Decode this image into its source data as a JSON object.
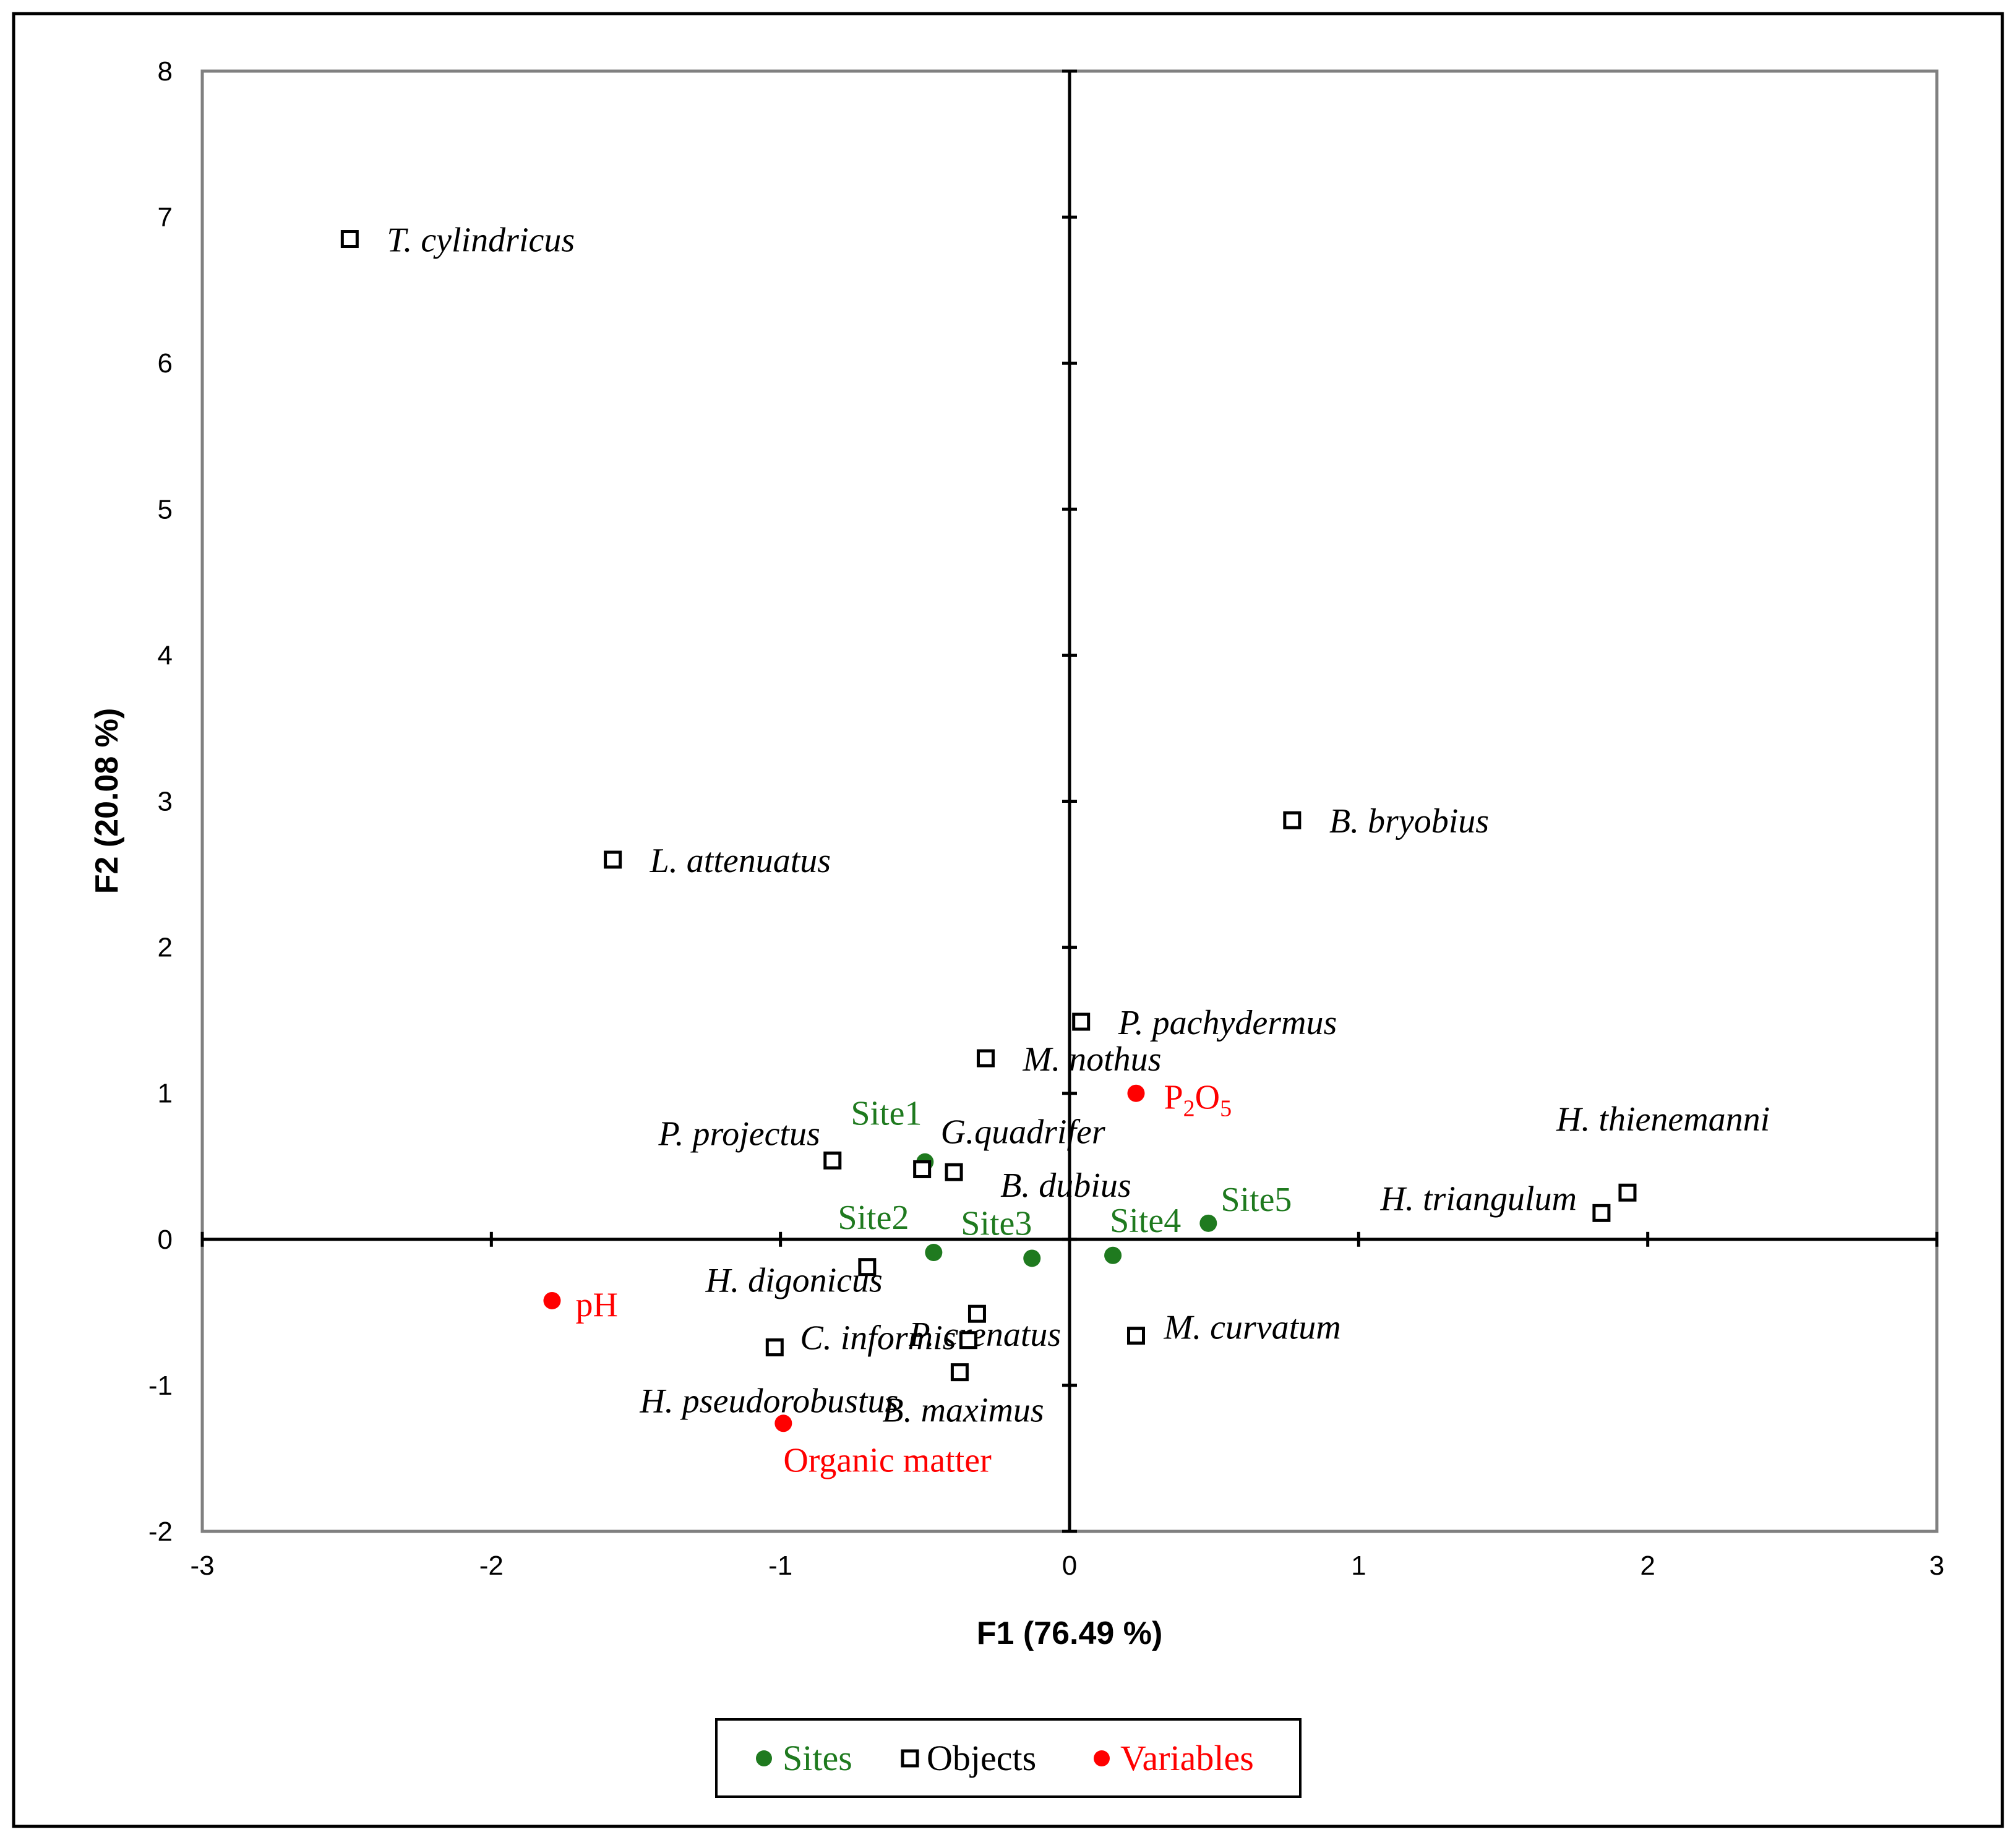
{
  "chart_data": {
    "type": "scatter",
    "xlabel": "F1 (76.49 %)",
    "ylabel": "F2 (20.08 %)",
    "xlim": [
      -3,
      3
    ],
    "ylim": [
      -2,
      8
    ],
    "xticks": [
      "-3",
      "-2",
      "-1",
      "0",
      "1",
      "2",
      "3"
    ],
    "yticks": [
      "-2",
      "-1",
      "0",
      "1",
      "2",
      "3",
      "4",
      "5",
      "6",
      "7",
      "8"
    ],
    "grid": false,
    "legend_position": "bottom-center",
    "colors": {
      "sites": "#1f7a1f",
      "objects": "#000000",
      "variables": "#ff0000"
    },
    "series": [
      {
        "name": "Sites",
        "marker": "filled-circle",
        "points": [
          {
            "label": "Site1",
            "x": -0.5,
            "y": 0.53
          },
          {
            "label": "Site2",
            "x": -0.47,
            "y": -0.09
          },
          {
            "label": "Site3",
            "x": -0.13,
            "y": -0.13
          },
          {
            "label": "Site4",
            "x": 0.15,
            "y": -0.11
          },
          {
            "label": "Site5",
            "x": 0.48,
            "y": 0.11
          }
        ]
      },
      {
        "name": "Objects",
        "marker": "open-square",
        "points": [
          {
            "label": "T. cylindricus",
            "x": -2.49,
            "y": 6.85
          },
          {
            "label": "L. attenuatus",
            "x": -1.58,
            "y": 2.6
          },
          {
            "label": "B. bryobius",
            "x": 0.77,
            "y": 2.87
          },
          {
            "label": "P. pachydermus",
            "x": 0.04,
            "y": 1.49
          },
          {
            "label": "M. nothus",
            "x": -0.29,
            "y": 1.24
          },
          {
            "label": "P. projectus",
            "x": -0.82,
            "y": 0.54
          },
          {
            "label": "G.quadrifer",
            "x": -0.51,
            "y": 0.48
          },
          {
            "label": "B. dubius",
            "x": -0.4,
            "y": 0.46
          },
          {
            "label": "H. thienemanni",
            "x": 1.93,
            "y": 0.32
          },
          {
            "label": "H. triangulum",
            "x": 1.84,
            "y": 0.18
          },
          {
            "label": "H. digonicus",
            "x": -0.7,
            "y": -0.19
          },
          {
            "label": "P. crenatus",
            "x": -0.32,
            "y": -0.51
          },
          {
            "label": "C. informis",
            "x": -0.35,
            "y": -0.69
          },
          {
            "label": "H. pseudorobustus",
            "x": -1.02,
            "y": -0.74
          },
          {
            "label": "B. maximus",
            "x": -0.38,
            "y": -0.91
          },
          {
            "label": "M. curvatum",
            "x": 0.23,
            "y": -0.66
          }
        ]
      },
      {
        "name": "Variables",
        "marker": "filled-circle",
        "points": [
          {
            "label": "P2O5",
            "x": 0.23,
            "y": 1.0
          },
          {
            "label": "pH",
            "x": -1.79,
            "y": -0.42
          },
          {
            "label": "Organic matter",
            "x": -0.99,
            "y": -1.26
          }
        ]
      }
    ],
    "legend": [
      {
        "label": "Sites"
      },
      {
        "label": "Objects"
      },
      {
        "label": "Variables"
      }
    ]
  }
}
